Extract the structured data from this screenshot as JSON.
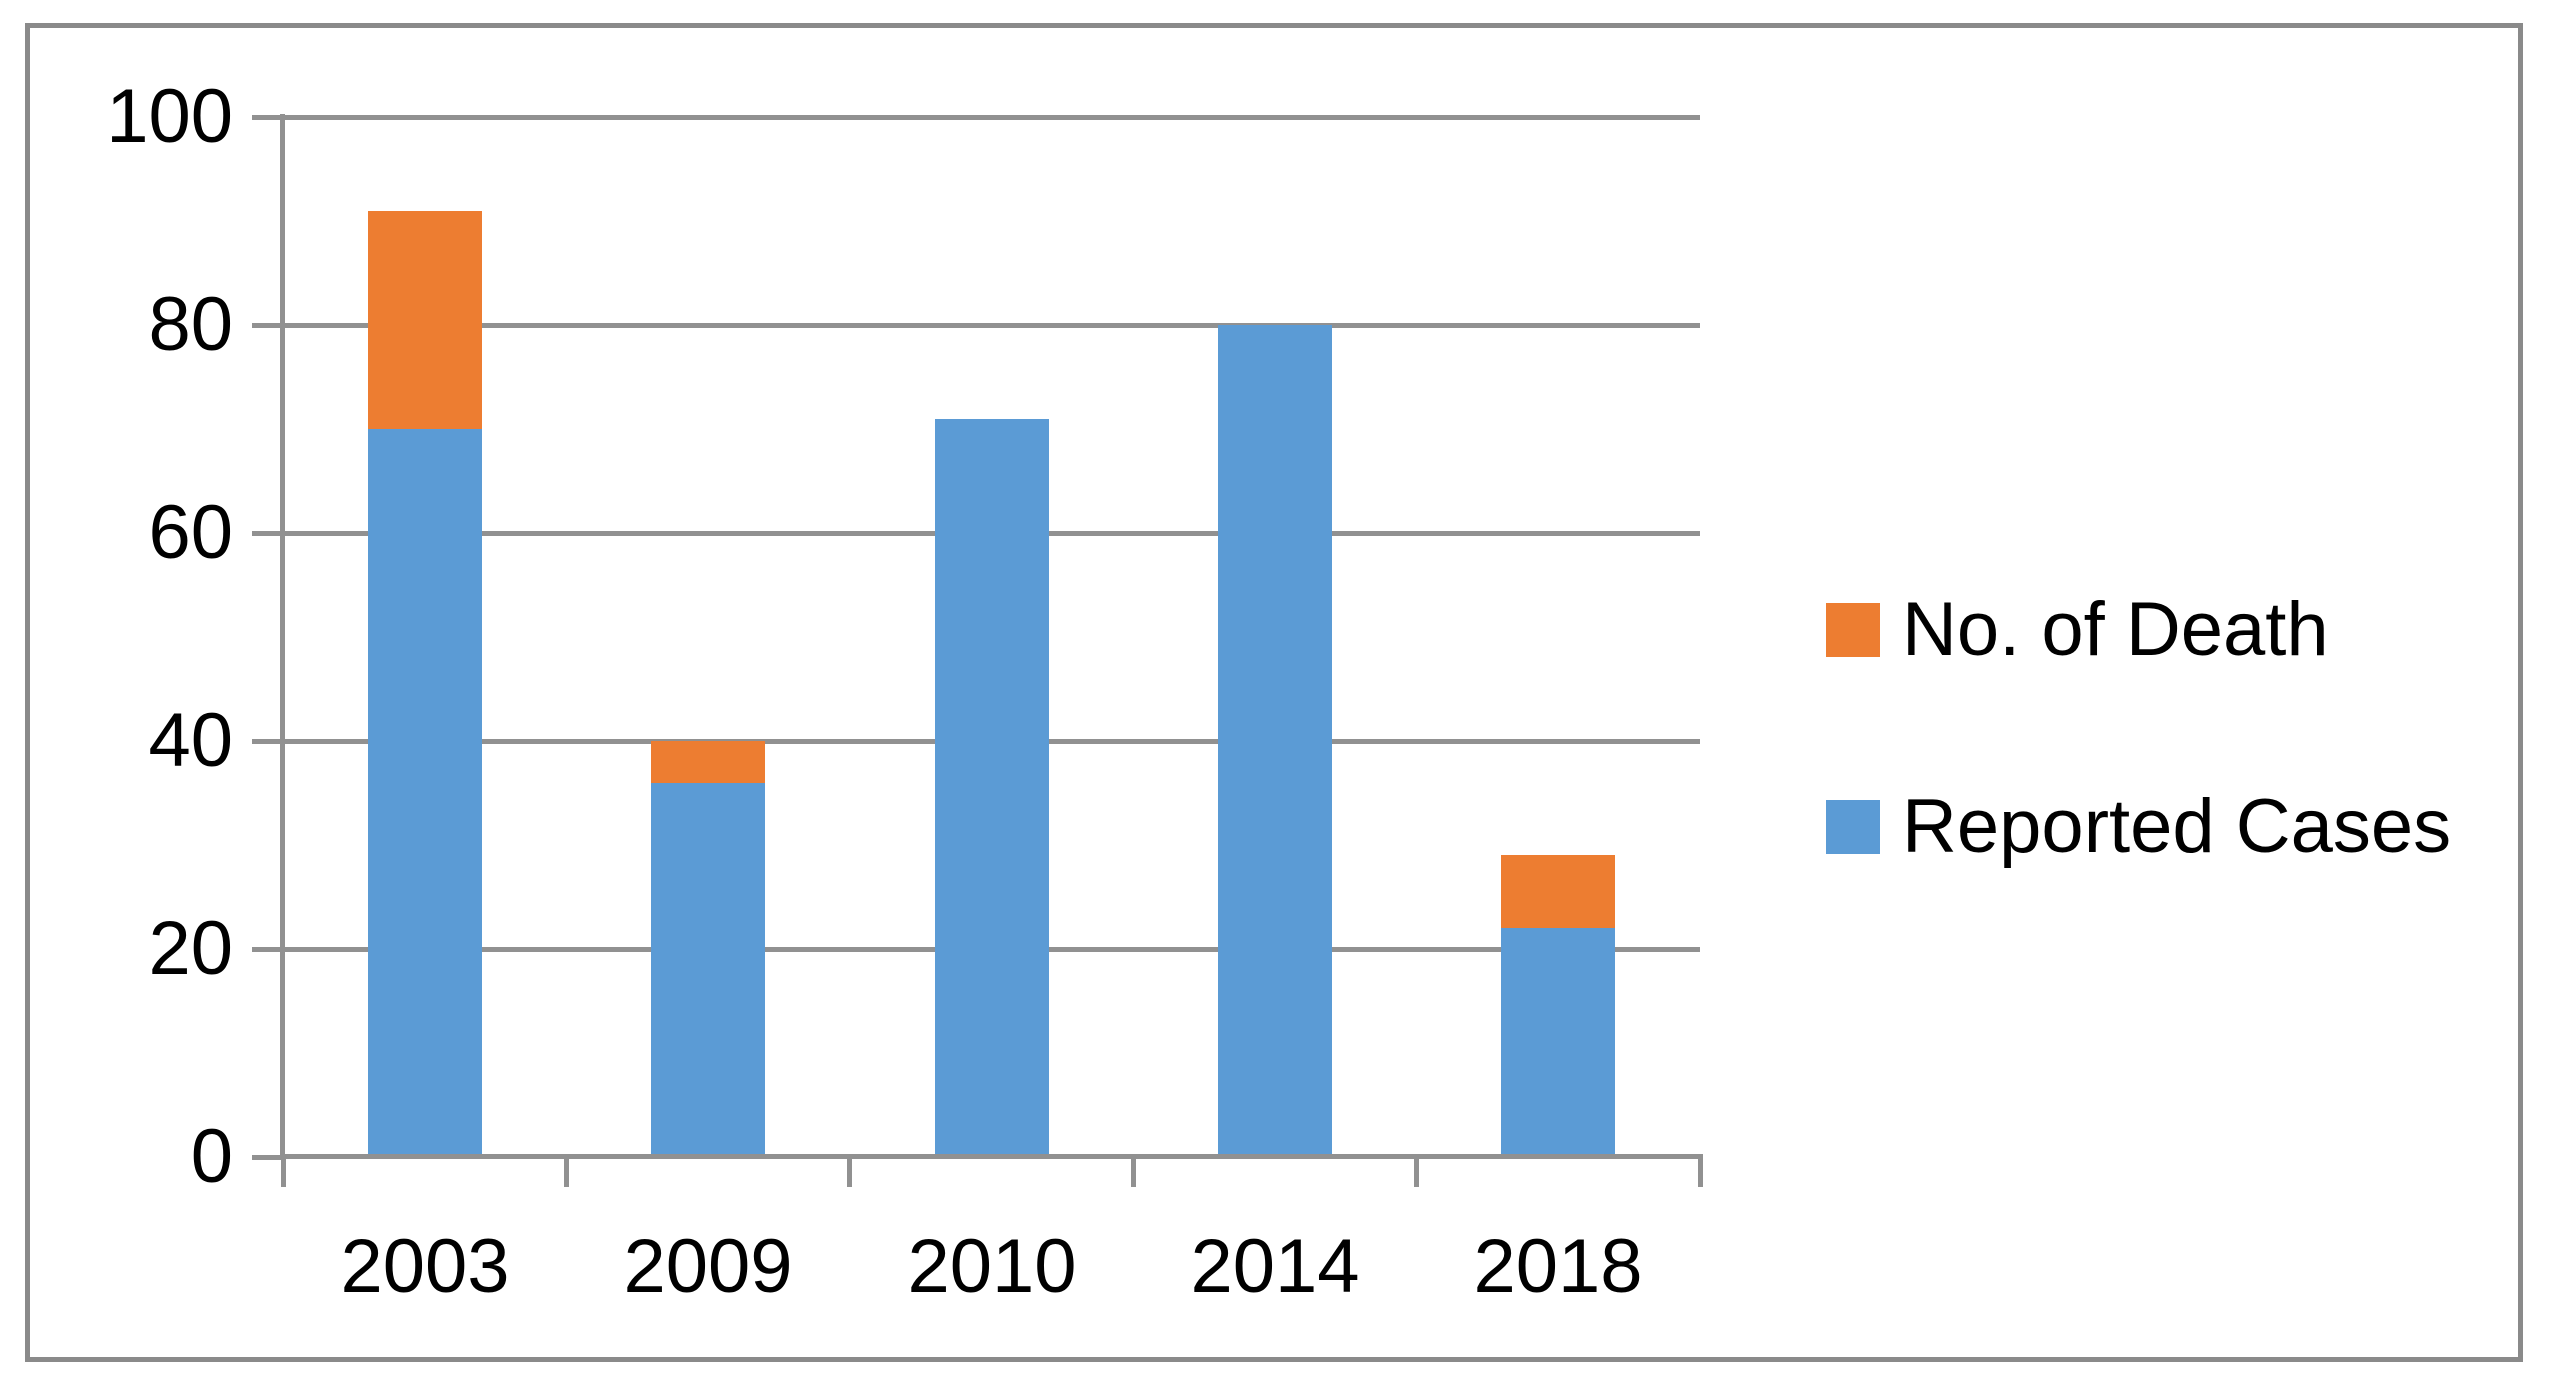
{
  "chart_data": {
    "type": "bar",
    "stacked": true,
    "title": "",
    "categories": [
      "2003",
      "2009",
      "2010",
      "2014",
      "2018"
    ],
    "series": [
      {
        "name": "Reported Cases",
        "color": "#5B9BD5",
        "values": [
          70,
          36,
          71,
          80,
          22
        ]
      },
      {
        "name": "No. of Death",
        "color": "#ED7D31",
        "values": [
          21,
          4,
          0,
          0,
          7
        ]
      }
    ],
    "stack_totals": [
      91,
      40,
      71,
      80,
      29
    ],
    "y_axis": {
      "min": 0,
      "max": 100,
      "tick_step": 20,
      "ticks": [
        0,
        20,
        40,
        60,
        80,
        100
      ],
      "tick_labels": [
        "0",
        "20",
        "40",
        "60",
        "80",
        "100"
      ]
    },
    "x_axis": {
      "tick_labels": [
        "2003",
        "2009",
        "2010",
        "2014",
        "2018"
      ]
    },
    "legend": {
      "position": "right-middle",
      "entries": [
        {
          "label": "No. of Death",
          "swatch_color": "#ED7D31"
        },
        {
          "label": "Reported Cases",
          "swatch_color": "#5B9BD5"
        }
      ]
    },
    "grid": true,
    "colors": {
      "gridline": "#919191",
      "axis": "#919191",
      "frame": "#8A8A8A",
      "text": "#000000",
      "background": "#FFFFFF"
    }
  }
}
